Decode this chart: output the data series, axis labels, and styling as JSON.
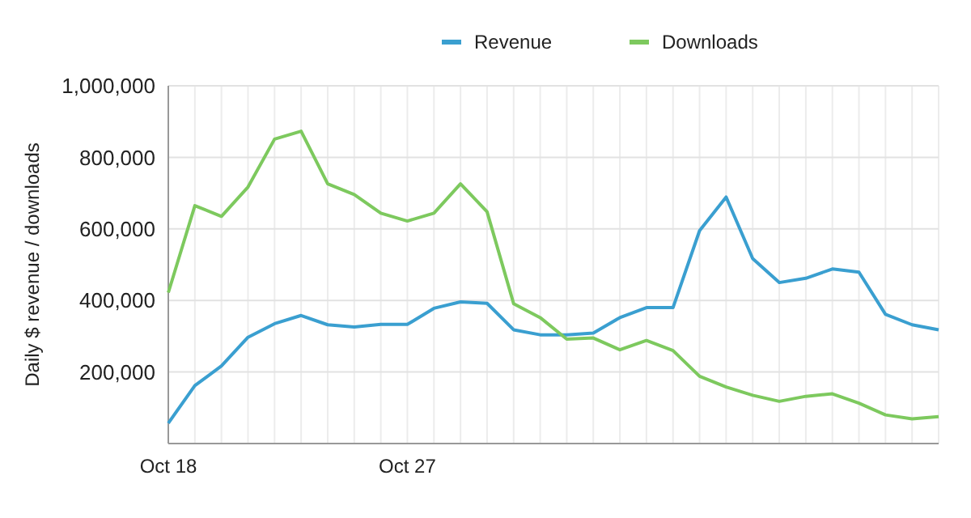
{
  "chart_data": {
    "type": "line",
    "ylabel": "Daily $ revenue / downloads",
    "categories": [
      "Oct 18",
      null,
      null,
      null,
      null,
      null,
      null,
      null,
      null,
      "Oct 27",
      null,
      null,
      null,
      null,
      null,
      null,
      null,
      null,
      null,
      null,
      null,
      null,
      null,
      null,
      null,
      null,
      null,
      null,
      null,
      null
    ],
    "series": [
      {
        "name": "Revenue",
        "color": "#3a9fd0",
        "values": [
          57000,
          162000,
          217000,
          297000,
          335000,
          358000,
          332000,
          326000,
          333000,
          333000,
          378000,
          396000,
          392000,
          318000,
          304000,
          304000,
          309000,
          352000,
          380000,
          380000,
          595000,
          689000,
          517000,
          450000,
          462000,
          488000,
          479000,
          361000,
          332000,
          318000
        ]
      },
      {
        "name": "Downloads",
        "color": "#7dc95e",
        "values": [
          422000,
          665000,
          635000,
          717000,
          851000,
          873000,
          726000,
          696000,
          644000,
          622000,
          644000,
          726000,
          648000,
          391000,
          352000,
          292000,
          295000,
          262000,
          288000,
          260000,
          188000,
          158000,
          135000,
          118000,
          132000,
          139000,
          113000,
          80000,
          69000,
          75000
        ]
      }
    ],
    "ylim": [
      0,
      1000000
    ],
    "yticks": [
      {
        "value": 200000,
        "label": "200,000"
      },
      {
        "value": 400000,
        "label": "400,000"
      },
      {
        "value": 600000,
        "label": "600,000"
      },
      {
        "value": 800000,
        "label": "800,000"
      },
      {
        "value": 1000000,
        "label": "1,000,000"
      }
    ],
    "grid": true,
    "legend": "top",
    "marker": "none",
    "line_style": "solid"
  }
}
